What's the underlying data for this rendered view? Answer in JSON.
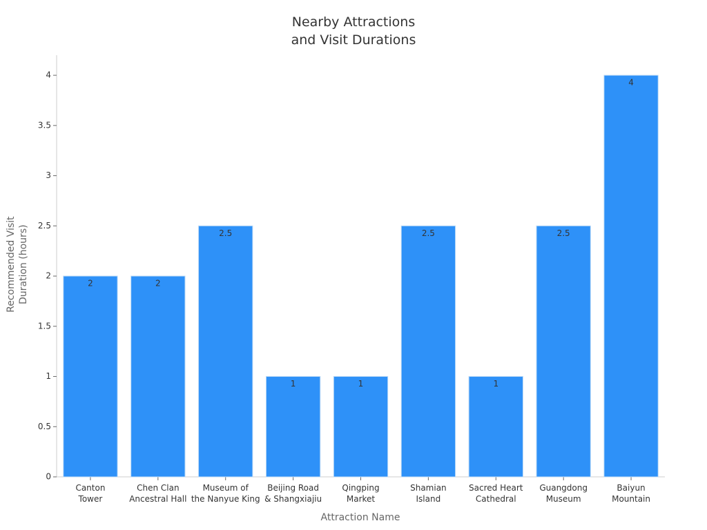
{
  "chart_data": {
    "type": "bar",
    "title": "Nearby Attractions\nand Visit Durations",
    "x_label": "Attraction Name",
    "y_label": "Recommended Visit\nDuration (hours)",
    "categories": [
      "Canton\nTower",
      "Chen Clan\nAncestral Hall",
      "Museum of\nthe Nanyue King",
      "Beijing Road\n& Shangxiajiu",
      "Qingping\nMarket",
      "Shamian\nIsland",
      "Sacred Heart\nCathedral",
      "Guangdong\nMuseum",
      "Baiyun\nMountain"
    ],
    "values": [
      2,
      2,
      2.5,
      1,
      1,
      2.5,
      1,
      2.5,
      4
    ],
    "color": "#2e91f8",
    "ylim": [
      0,
      4.2
    ],
    "yticks": [
      0,
      0.5,
      1,
      1.5,
      2,
      2.5,
      3,
      3.5,
      4
    ],
    "grid": false
  }
}
